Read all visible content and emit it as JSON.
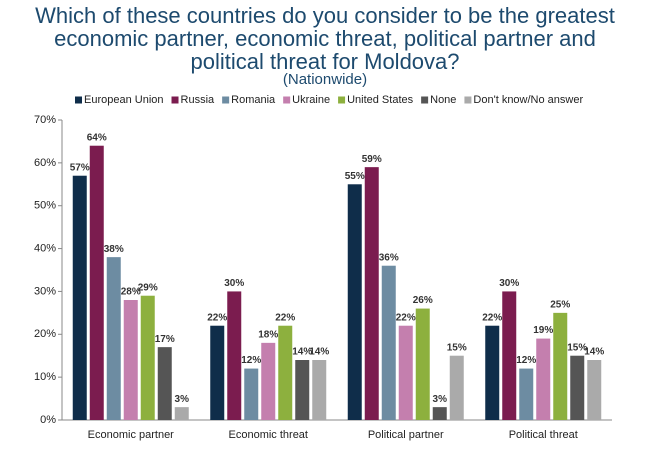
{
  "chart_data": {
    "type": "bar",
    "title": "Which of these countries do you consider to be the greatest economic partner, economic threat, political partner and political threat for Moldova?",
    "subtitle": "(Nationwide)",
    "categories": [
      "Economic partner",
      "Economic threat",
      "Political partner",
      "Political threat"
    ],
    "series": [
      {
        "name": "European Union",
        "color": "#0f2d4a",
        "values": [
          57,
          22,
          55,
          22
        ],
        "value_labels": [
          "57%",
          "22%",
          "55%",
          "22%"
        ]
      },
      {
        "name": "Russia",
        "color": "#7b1c4f",
        "values": [
          64,
          30,
          59,
          30
        ],
        "value_labels": [
          "64%",
          "30%",
          "59%",
          "30%"
        ]
      },
      {
        "name": "Romania",
        "color": "#6d8ca2",
        "values": [
          38,
          12,
          36,
          12
        ],
        "value_labels": [
          "38%",
          "12%",
          "36%",
          "12%"
        ]
      },
      {
        "name": "Ukraine",
        "color": "#c47fae",
        "values": [
          28,
          18,
          22,
          19
        ],
        "value_labels": [
          "28%",
          "18%",
          "22%",
          "19%"
        ]
      },
      {
        "name": "United States",
        "color": "#8db03e",
        "values": [
          29,
          22,
          26,
          25
        ],
        "value_labels": [
          "29%",
          "22%",
          "26%",
          "25%"
        ]
      },
      {
        "name": "None",
        "color": "#555555",
        "values": [
          17,
          14,
          3,
          15
        ],
        "value_labels": [
          "17%",
          "14%",
          "3%",
          "15%"
        ]
      },
      {
        "name": "Don't know/No answer",
        "color": "#aaaaaa",
        "values": [
          3,
          14,
          15,
          14
        ],
        "value_labels": [
          "3%",
          "14%",
          "15%",
          "14%"
        ]
      }
    ],
    "ylim": [
      0,
      70
    ],
    "yticks": [
      {
        "value": 0,
        "label": "0%"
      },
      {
        "value": 10,
        "label": "10%"
      },
      {
        "value": 20,
        "label": "20%"
      },
      {
        "value": 30,
        "label": "30%"
      },
      {
        "value": 40,
        "label": "40%"
      },
      {
        "value": 50,
        "label": "50%"
      },
      {
        "value": 60,
        "label": "60%"
      },
      {
        "value": 70,
        "label": "70%"
      }
    ],
    "grid": false,
    "legend": "top"
  }
}
